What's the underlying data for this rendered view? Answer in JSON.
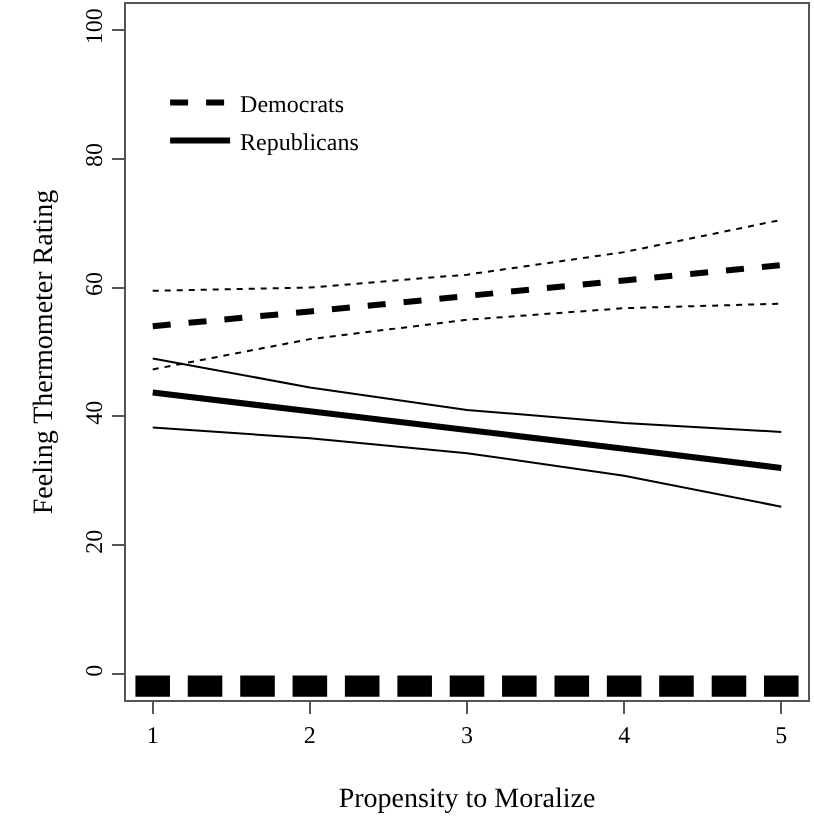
{
  "chart_data": {
    "type": "line",
    "xlabel": "Propensity to Moralize",
    "ylabel": "Feeling Thermometer Rating",
    "xlim": [
      0.83,
      5.17
    ],
    "xticks": [
      1,
      2,
      3,
      4,
      5
    ],
    "ylim": [
      -4,
      104
    ],
    "yticks": [
      0,
      20,
      40,
      60,
      80,
      100
    ],
    "legend": "top left",
    "marker": "none",
    "series": [
      {
        "name": "Democrats",
        "color": "#000000",
        "line_style": "dashed",
        "x": [
          1,
          2,
          3,
          4,
          5
        ],
        "values": [
          54,
          56.3,
          58.7,
          61.1,
          63.5
        ]
      },
      {
        "name": "Republicans",
        "color": "#000000",
        "line_style": "solid",
        "x": [
          1,
          2,
          3,
          4,
          5
        ],
        "values": [
          43.7,
          40.8,
          37.9,
          35,
          32
        ]
      },
      {
        "color": "#000000",
        "line_style": "dotted",
        "x": [
          1,
          2,
          3,
          4,
          5
        ],
        "values": [
          59.5,
          60,
          62,
          65.5,
          70.5
        ]
      },
      {
        "color": "#000000",
        "line_style": "dotted",
        "x": [
          1,
          2,
          3,
          4,
          5
        ],
        "values": [
          47.3,
          52,
          55,
          56.8,
          57.5
        ]
      },
      {
        "color": "#000000",
        "line_style": "solid",
        "x": [
          1,
          2,
          3,
          4,
          5
        ],
        "values": [
          49,
          44.5,
          41,
          39,
          37.6
        ]
      },
      {
        "color": "#000000",
        "line_style": "solid",
        "x": [
          1,
          2,
          3,
          4,
          5
        ],
        "values": [
          38.3,
          36.6,
          34.3,
          30.8,
          26
        ]
      },
      {
        "type": "bar",
        "color": "#000000",
        "base": [
          -3.5,
          -3.5,
          -3.5,
          -3.5,
          -3.5,
          -3.5,
          -3.5,
          -3.5,
          -3.5,
          -3.5,
          -3.5,
          -3.5,
          -3.5
        ],
        "x": [
          1,
          1.333,
          1.667,
          2,
          2.333,
          2.667,
          3,
          3.333,
          3.667,
          4,
          4.333,
          4.667,
          5
        ],
        "values": [
          3.3,
          3.3,
          3.3,
          3.3,
          3.3,
          3.3,
          3.3,
          3.3,
          3.3,
          3.3,
          3.3,
          3.3,
          3.3
        ]
      }
    ]
  }
}
